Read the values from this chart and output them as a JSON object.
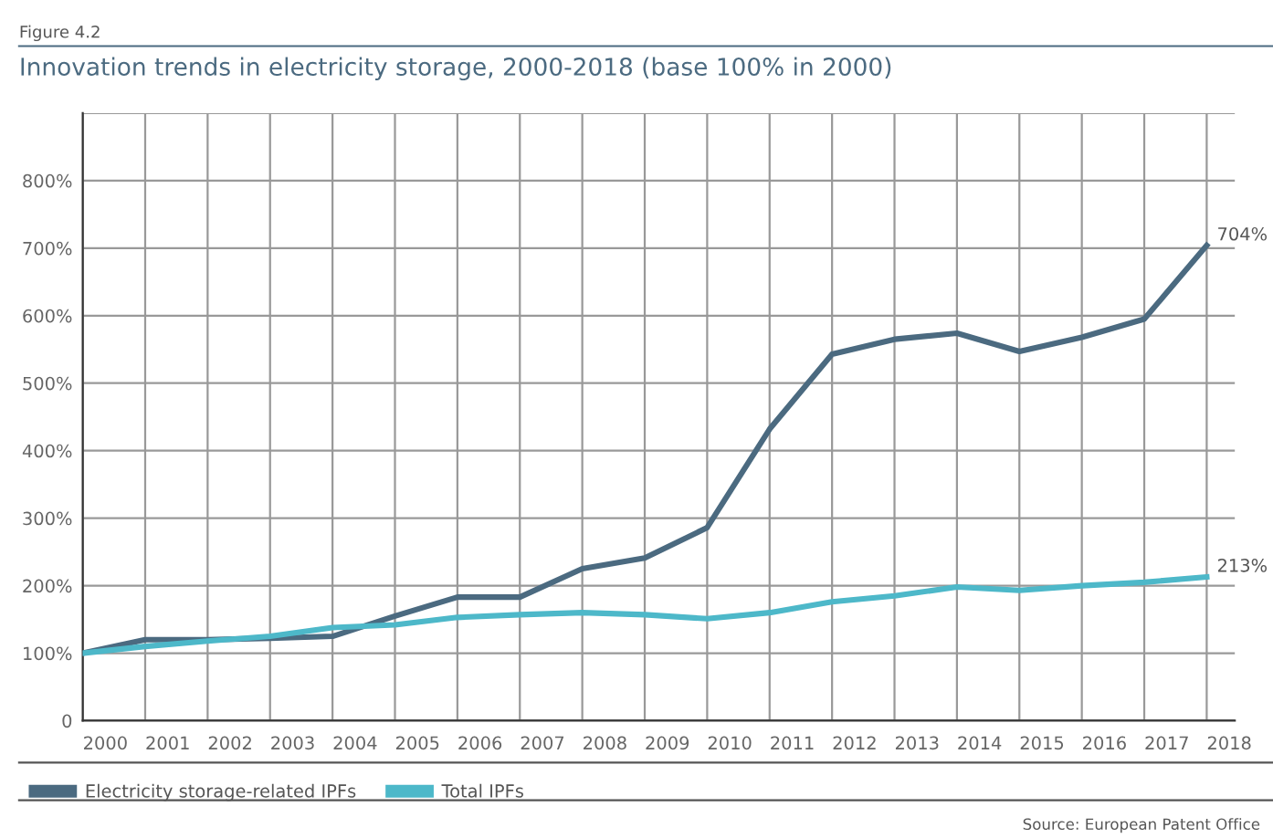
{
  "chart_data": {
    "type": "line",
    "subtitle": "Figure 4.2",
    "title": "Innovation trends in electricity storage, 2000-2018 (base 100% in 2000)",
    "categories": [
      "2000",
      "2001",
      "2002",
      "2003",
      "2004",
      "2005",
      "2006",
      "2007",
      "2008",
      "2009",
      "2010",
      "2011",
      "2012",
      "2013",
      "2014",
      "2015",
      "2016",
      "2017",
      "2018"
    ],
    "series": [
      {
        "name": "Electricity storage-related IPFs",
        "color": "#4b6a80",
        "values": [
          100,
          120,
          120,
          122,
          125,
          155,
          183,
          183,
          225,
          241,
          286,
          432,
          543,
          565,
          574,
          547,
          568,
          595,
          704
        ],
        "value_labels": [
          null,
          null,
          null,
          null,
          null,
          null,
          null,
          null,
          null,
          null,
          null,
          null,
          null,
          null,
          null,
          null,
          null,
          null,
          "704%"
        ]
      },
      {
        "name": "Total IPFs",
        "color": "#4db8c9",
        "values": [
          100,
          110,
          118,
          125,
          138,
          142,
          153,
          157,
          160,
          157,
          151,
          160,
          176,
          185,
          198,
          193,
          200,
          205,
          213
        ],
        "value_labels": [
          null,
          null,
          null,
          null,
          null,
          null,
          null,
          null,
          null,
          null,
          null,
          null,
          null,
          null,
          null,
          null,
          null,
          null,
          "213%"
        ]
      }
    ],
    "ylim": [
      0,
      900
    ],
    "yticks": [
      {
        "value": 0,
        "label": "0"
      },
      {
        "value": 100,
        "label": "100%"
      },
      {
        "value": 200,
        "label": "200%"
      },
      {
        "value": 300,
        "label": "300%"
      },
      {
        "value": 400,
        "label": "400%"
      },
      {
        "value": 500,
        "label": "500%"
      },
      {
        "value": 600,
        "label": "600%"
      },
      {
        "value": 700,
        "label": "700%"
      },
      {
        "value": 800,
        "label": "800%"
      },
      {
        "value": 900,
        "label": null
      }
    ],
    "grid": true,
    "legend": "bottom left",
    "marker": "none",
    "line_style": "solid",
    "annotations": [
      "Source: European Patent Office"
    ]
  }
}
